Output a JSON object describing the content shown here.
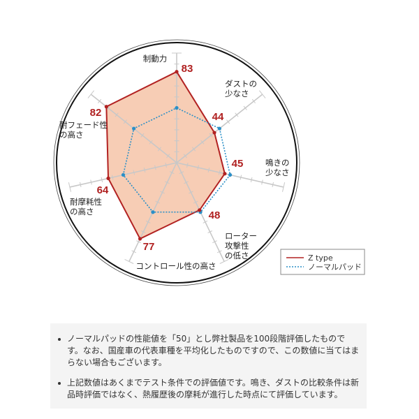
{
  "chart_data": {
    "type": "radar",
    "axes": [
      [
        "制動力"
      ],
      [
        "ダストの",
        "少なさ"
      ],
      [
        "鳴きの",
        "少なさ"
      ],
      [
        "ローター",
        "攻撃性",
        "の低さ"
      ],
      [
        "コントロール性の高さ"
      ],
      [
        "耐摩耗性",
        "の高さ"
      ],
      [
        "耐フェード性",
        "の高さ"
      ]
    ],
    "range": [
      0,
      100
    ],
    "tick_step": 10,
    "series": [
      {
        "name": "Z type",
        "values": [
          83,
          44,
          45,
          48,
          77,
          64,
          82
        ],
        "color": "#b22222",
        "fill": "#f7cdb5",
        "style": "solid",
        "show_values": true
      },
      {
        "name": "ノーマルパッド",
        "values": [
          50,
          50,
          50,
          50,
          50,
          50,
          50
        ],
        "color": "#2a8fc7",
        "style": "dotted"
      }
    ],
    "legend": "bottom-right"
  },
  "notes": [
    "ノーマルパッドの性能値を「50」とし弊社製品を100段階評価したものです。なお、国産車の代表車種を平均化したものですので、この数値に当てはまらない場合もございます。",
    "上記数値はあくまでテスト条件での評価値です。鳴き、ダストの比較条件は新品時評価ではなく、熱履歴後の摩耗が進行した時点にて評価しています。"
  ]
}
